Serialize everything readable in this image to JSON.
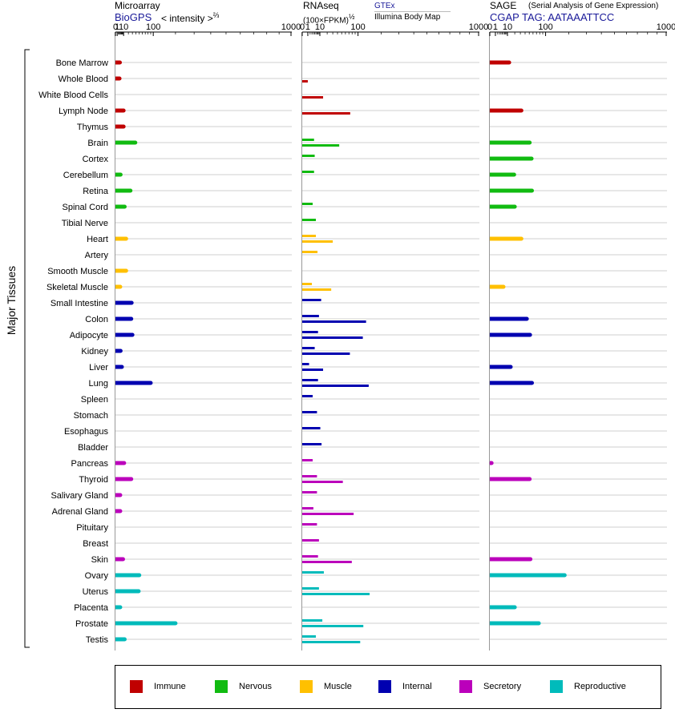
{
  "headers": {
    "p1": {
      "title": "Microarray",
      "source": "BioGPS",
      "unit_a": "< intensity >",
      "unit_b": "⅔"
    },
    "p2": {
      "title": "RNAseq",
      "unit_a": "(100×FPKM)",
      "unit_b": "½",
      "source_top": "GTEx",
      "source_bottom": "Illumina Body Map"
    },
    "p3": {
      "title": "SAGE",
      "subtitle": "(Serial Analysis of Gene Expression)",
      "tag": "CGAP TAG: AATAAATTCC"
    }
  },
  "y_axis_label": "Major Tissues",
  "colors": {
    "Immune": "#c00000",
    "Nervous": "#11bb11",
    "Muscle": "#ffc000",
    "Internal": "#0000b0",
    "Secretory": "#bb00bb",
    "Reproductive": "#00bbbb"
  },
  "legend": [
    {
      "label": "Immune",
      "color": "#c00000"
    },
    {
      "label": "Nervous",
      "color": "#11bb11"
    },
    {
      "label": "Muscle",
      "color": "#ffc000"
    },
    {
      "label": "Internal",
      "color": "#0000b0"
    },
    {
      "label": "Secretory",
      "color": "#bb00bb"
    },
    {
      "label": "Reproductive",
      "color": "#00bbbb"
    }
  ],
  "chart_data": [
    {
      "type": "bar",
      "panel": "Microarray",
      "scale": "power 2/3",
      "xlim": [
        0,
        1000
      ],
      "ticks": [
        "0",
        "1",
        "10",
        "100",
        "1000"
      ],
      "series": [
        {
          "name": "BioGPS",
          "values": [
            4,
            3.5,
            0,
            10,
            10,
            38,
            0,
            5,
            25,
            12,
            0,
            15,
            0,
            15,
            4.5,
            28,
            27,
            30,
            5,
            7,
            90,
            0,
            0,
            0,
            0,
            11,
            27,
            4.5,
            4.5,
            0,
            0,
            9,
            50,
            48,
            4.5,
            200,
            12
          ]
        }
      ]
    },
    {
      "type": "bar",
      "panel": "RNAseq",
      "scale": "power 1/2",
      "xlim": [
        0,
        1000
      ],
      "ticks": [
        "0",
        "1",
        "10",
        "100",
        "1000"
      ],
      "series": [
        {
          "name": "GTEx",
          "values": [
            0,
            0,
            0,
            0,
            0,
            4.5,
            5,
            4.5,
            0,
            3.5,
            6,
            6,
            7.5,
            0,
            3,
            11.5,
            9,
            8,
            5,
            1.5,
            8,
            3.5,
            7,
            10.5,
            12,
            3.5,
            7,
            7,
            4,
            7,
            9,
            8,
            15,
            9,
            0,
            13,
            6
          ]
        },
        {
          "name": "Illumina Body Map",
          "values": [
            0,
            1,
            14,
            74,
            0,
            44,
            0,
            0,
            0,
            0,
            0,
            30,
            0,
            0,
            27,
            0,
            131,
            118,
            73,
            14,
            142,
            0,
            0,
            0,
            0,
            0,
            53,
            0,
            85,
            0,
            0,
            79,
            0,
            146,
            0,
            120,
            108
          ]
        }
      ]
    },
    {
      "type": "bar",
      "panel": "SAGE",
      "scale": "power 1/2",
      "xlim": [
        0,
        1000
      ],
      "ticks": [
        "0",
        "1",
        "10",
        "100",
        "1000"
      ],
      "series": [
        {
          "name": "CGAP SAGE",
          "values": [
            12,
            0,
            0,
            32,
            0,
            51,
            56,
            19,
            57,
            20,
            0,
            32,
            0,
            0,
            6,
            0,
            44,
            52,
            0,
            14,
            57,
            0,
            0,
            0,
            0,
            0.1,
            51,
            0,
            0,
            0,
            0,
            53,
            180,
            0,
            20,
            77,
            0
          ]
        }
      ]
    }
  ],
  "tissues": [
    {
      "name": "Bone Marrow",
      "group": "Immune"
    },
    {
      "name": "Whole Blood",
      "group": "Immune"
    },
    {
      "name": "White Blood Cells",
      "group": "Immune"
    },
    {
      "name": "Lymph Node",
      "group": "Immune"
    },
    {
      "name": "Thymus",
      "group": "Immune"
    },
    {
      "name": "Brain",
      "group": "Nervous"
    },
    {
      "name": "Cortex",
      "group": "Nervous"
    },
    {
      "name": "Cerebellum",
      "group": "Nervous"
    },
    {
      "name": "Retina",
      "group": "Nervous"
    },
    {
      "name": "Spinal Cord",
      "group": "Nervous"
    },
    {
      "name": "Tibial Nerve",
      "group": "Nervous"
    },
    {
      "name": "Heart",
      "group": "Muscle"
    },
    {
      "name": "Artery",
      "group": "Muscle"
    },
    {
      "name": "Smooth Muscle",
      "group": "Muscle"
    },
    {
      "name": "Skeletal Muscle",
      "group": "Muscle"
    },
    {
      "name": "Small Intestine",
      "group": "Internal"
    },
    {
      "name": "Colon",
      "group": "Internal"
    },
    {
      "name": "Adipocyte",
      "group": "Internal"
    },
    {
      "name": "Kidney",
      "group": "Internal"
    },
    {
      "name": "Liver",
      "group": "Internal"
    },
    {
      "name": "Lung",
      "group": "Internal"
    },
    {
      "name": "Spleen",
      "group": "Internal"
    },
    {
      "name": "Stomach",
      "group": "Internal"
    },
    {
      "name": "Esophagus",
      "group": "Internal"
    },
    {
      "name": "Bladder",
      "group": "Internal"
    },
    {
      "name": "Pancreas",
      "group": "Secretory"
    },
    {
      "name": "Thyroid",
      "group": "Secretory"
    },
    {
      "name": "Salivary Gland",
      "group": "Secretory"
    },
    {
      "name": "Adrenal Gland",
      "group": "Secretory"
    },
    {
      "name": "Pituitary",
      "group": "Secretory"
    },
    {
      "name": "Breast",
      "group": "Secretory"
    },
    {
      "name": "Skin",
      "group": "Secretory"
    },
    {
      "name": "Ovary",
      "group": "Reproductive"
    },
    {
      "name": "Uterus",
      "group": "Reproductive"
    },
    {
      "name": "Placenta",
      "group": "Reproductive"
    },
    {
      "name": "Prostate",
      "group": "Reproductive"
    },
    {
      "name": "Testis",
      "group": "Reproductive"
    }
  ]
}
